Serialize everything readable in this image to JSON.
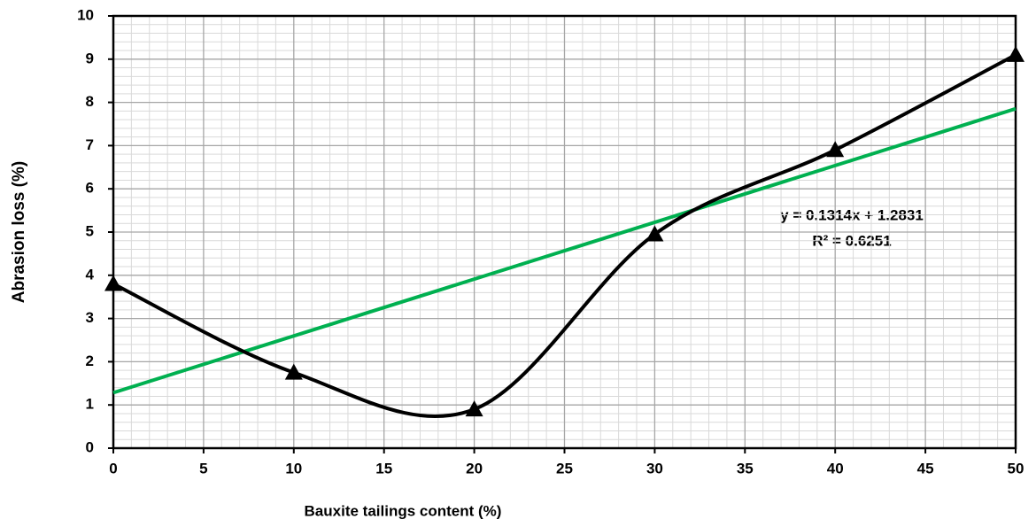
{
  "chart_data": {
    "type": "line",
    "x_label": "Bauxite tailings content (%)",
    "y_label": "Abrasion loss (%)",
    "annotations": [
      "y = 0.1314x + 1.2831",
      "R² = 0.6251"
    ],
    "series": [
      {
        "color": "#000000",
        "smooth": true,
        "marker": "triangle",
        "x": [
          0,
          10,
          20,
          30,
          40,
          50
        ],
        "values": [
          3.8,
          1.75,
          0.9,
          4.95,
          6.9,
          9.1
        ]
      },
      {
        "color": "#00b050",
        "smooth": false,
        "x": [
          0,
          50
        ],
        "values": [
          1.2831,
          7.8531
        ]
      }
    ],
    "xlim": [
      0,
      50
    ],
    "xticks": [
      0,
      5,
      10,
      15,
      20,
      25,
      30,
      35,
      40,
      45,
      50
    ],
    "ylim": [
      0,
      10
    ],
    "yticks": [
      0,
      1,
      2,
      3,
      4,
      5,
      6,
      7,
      8,
      9,
      10
    ],
    "grid": true,
    "minor_grid": true
  }
}
